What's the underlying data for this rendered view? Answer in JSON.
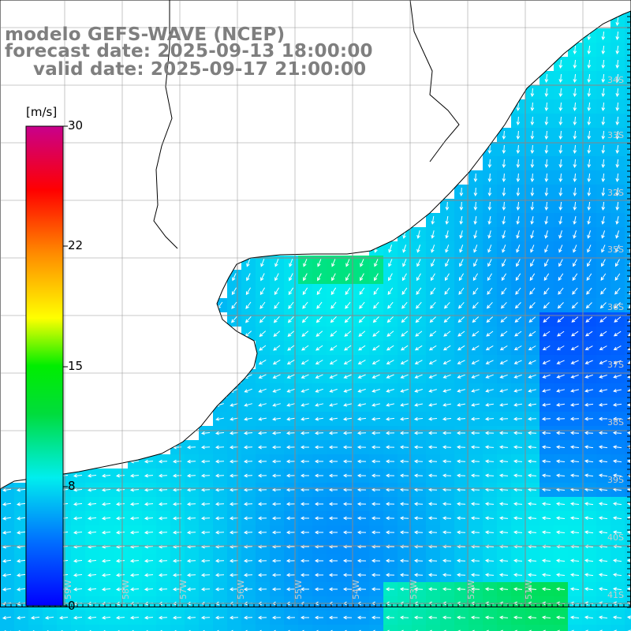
{
  "header": {
    "line1": "modelo GEFS-WAVE (NCEP)",
    "line2": "forecast date: 2025-09-13 18:00:00",
    "line3": "valid date: 2025-09-17 21:00:00"
  },
  "colorbar": {
    "unit": "[m/s]",
    "ticks": [
      "30",
      "22",
      "15",
      "8",
      "0"
    ],
    "colors": [
      "#0000ff",
      "#00aaff",
      "#00ffee",
      "#00ee00",
      "#ffff00",
      "#ff8800",
      "#ff0000",
      "#cc0099"
    ]
  },
  "lat_labels": [
    "34S",
    "33S",
    "32S",
    "35S",
    "36S",
    "37S",
    "38S",
    "39S",
    "40S",
    "41S"
  ],
  "lon_labels": [
    "59W",
    "58W",
    "57W",
    "56W",
    "55W",
    "54W",
    "53W",
    "52W",
    "51W"
  ],
  "colors": {
    "land": "#ffffff",
    "coast": "#000000",
    "grid": "#888888",
    "arrow": "#ffffff",
    "title": "#7f7f7f"
  }
}
